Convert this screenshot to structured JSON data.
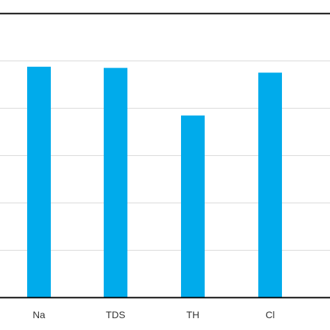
{
  "chart_data": {
    "type": "bar",
    "categories": [
      "Na",
      "TDS",
      "TH",
      "Cl"
    ],
    "values": [
      0.974,
      0.969,
      0.768,
      0.949
    ],
    "ylim": [
      0,
      1.2
    ],
    "grid": true,
    "legend": "none",
    "colors": {
      "bar": "#00ABEB",
      "grid": "#D9D9D9",
      "top_border": "#000000",
      "baseline": "#000000"
    }
  }
}
